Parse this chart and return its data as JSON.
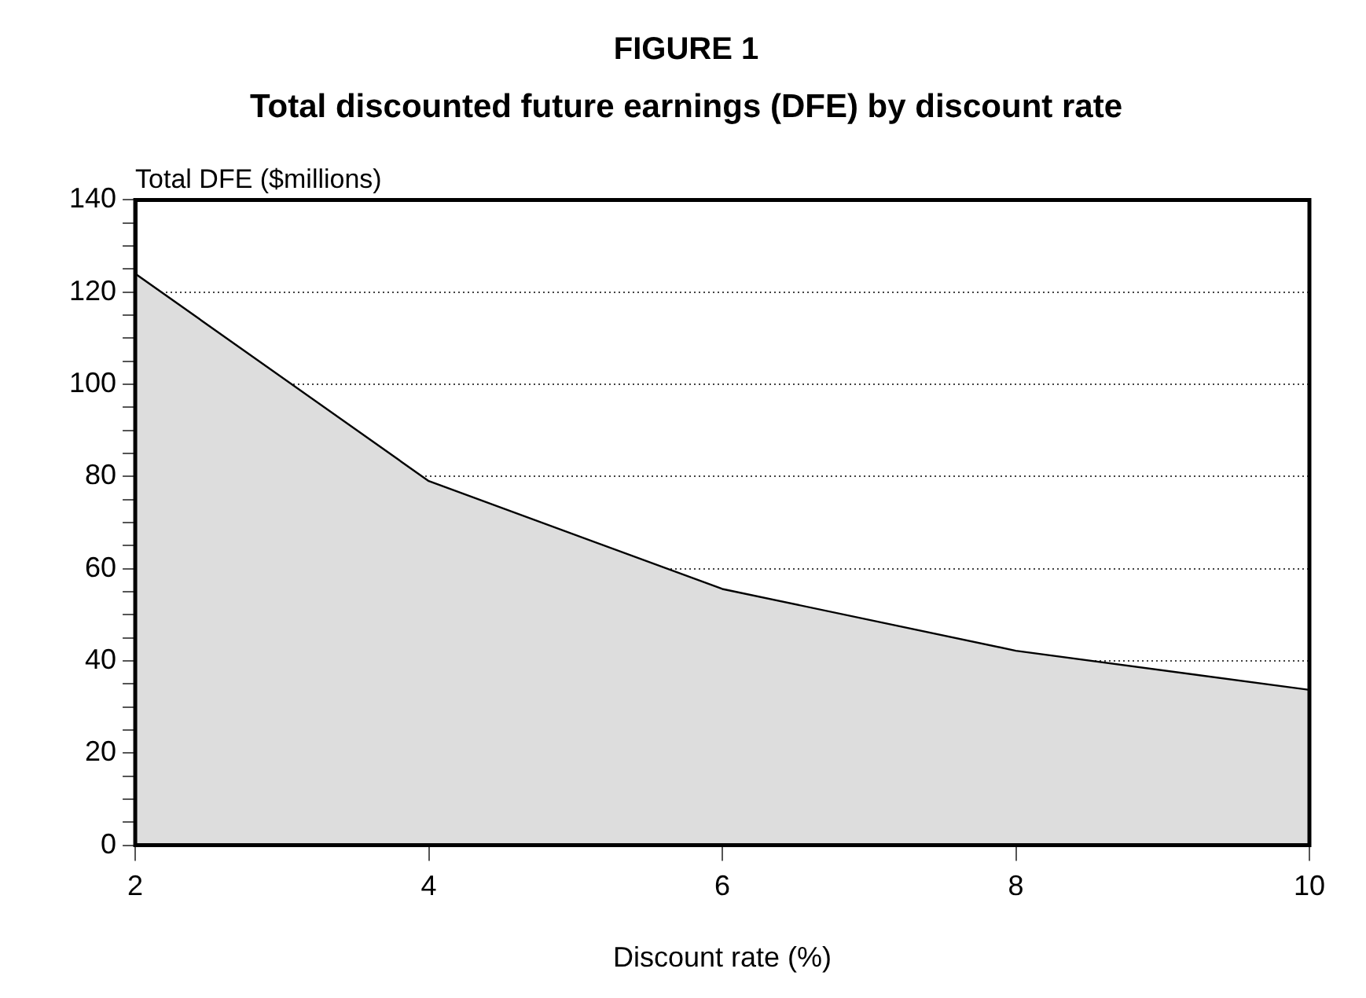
{
  "chart_data": {
    "type": "area",
    "title": "FIGURE 1",
    "subtitle": "Total discounted future earnings (DFE) by discount rate",
    "xlabel": "Discount rate (%)",
    "ylabel": "Total DFE ($millions)",
    "x": [
      2,
      4,
      6,
      8,
      10
    ],
    "series": [
      {
        "color": "#dddddd",
        "values": [
          124,
          79,
          55.6,
          42.2,
          33.7
        ]
      }
    ],
    "xlim": [
      2,
      10
    ],
    "xticks": [
      2,
      4,
      6,
      8,
      10
    ],
    "ylim": [
      0,
      140
    ],
    "yticks": [
      0,
      {
        "value": 5,
        "label": null
      },
      {
        "value": 10,
        "label": null
      },
      {
        "value": 15,
        "label": null
      },
      20,
      {
        "value": 25,
        "label": null
      },
      {
        "value": 30,
        "label": null
      },
      {
        "value": 35,
        "label": null
      },
      40,
      {
        "value": 45,
        "label": null
      },
      {
        "value": 50,
        "label": null
      },
      {
        "value": 55,
        "label": null
      },
      60,
      {
        "value": 65,
        "label": null
      },
      {
        "value": 70,
        "label": null
      },
      {
        "value": 75,
        "label": null
      },
      80,
      {
        "value": 85,
        "label": null
      },
      {
        "value": 90,
        "label": null
      },
      {
        "value": 95,
        "label": null
      },
      100,
      {
        "value": 105,
        "label": null
      },
      {
        "value": 110,
        "label": null
      },
      {
        "value": 115,
        "label": null
      },
      120,
      {
        "value": 125,
        "label": null
      },
      {
        "value": 130,
        "label": null
      },
      {
        "value": 135,
        "label": null
      },
      140
    ],
    "grid": "y",
    "legend": false
  }
}
